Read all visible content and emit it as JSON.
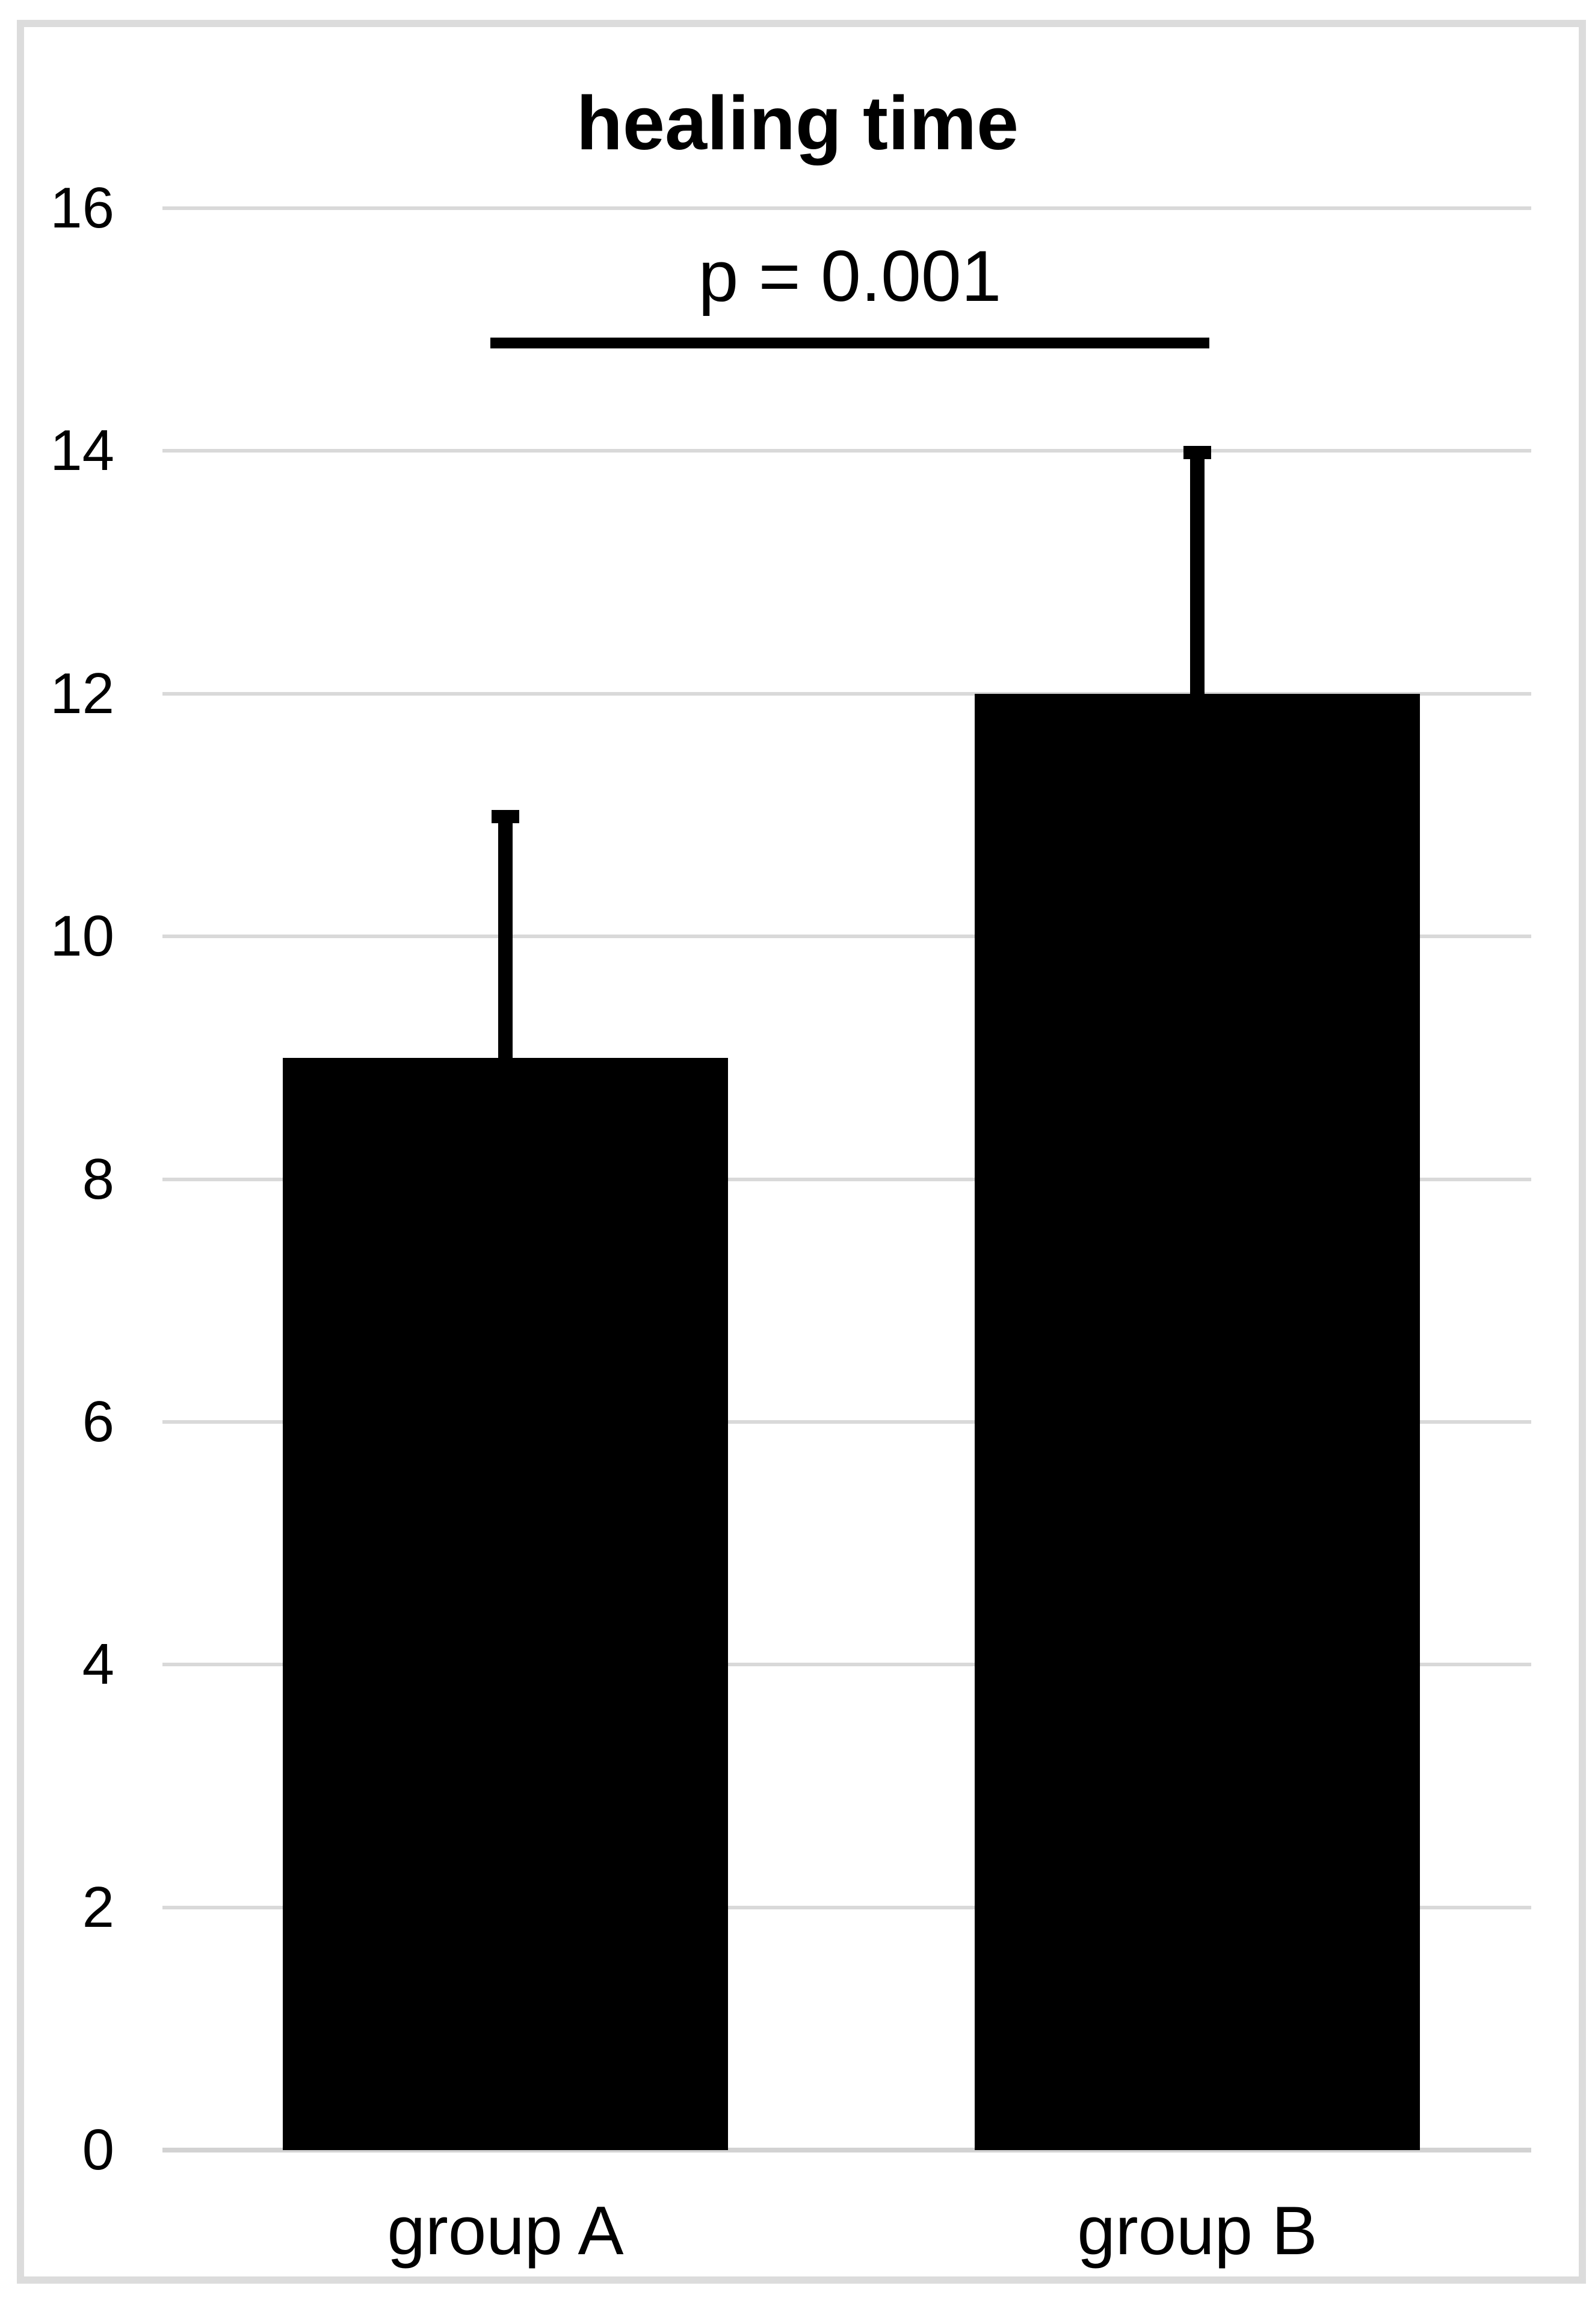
{
  "chart_data": {
    "type": "bar",
    "title": "healing time",
    "categories": [
      "group A",
      "group B"
    ],
    "values": [
      9,
      12
    ],
    "error_plus": [
      2,
      2
    ],
    "error_tops": [
      11,
      14
    ],
    "ylim": [
      0,
      16
    ],
    "ytick_step": 2,
    "ytick_labels": [
      "0",
      "2",
      "4",
      "6",
      "8",
      "10",
      "12",
      "14",
      "16"
    ],
    "xlabel": "",
    "ylabel": "",
    "grid": true,
    "legend": "none",
    "annotation": {
      "label": "p = 0.001",
      "between": [
        "group A",
        "group B"
      ]
    },
    "colors": {
      "bar": "#000000",
      "text": "#000000",
      "gridline": "#d9d9d9",
      "axis_line": "#d2d2d2",
      "frame_border": "#dcdcdc",
      "background": "#ffffff"
    }
  }
}
